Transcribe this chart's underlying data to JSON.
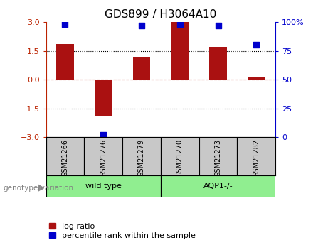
{
  "title": "GDS899 / H3064A10",
  "samples": [
    "GSM21266",
    "GSM21276",
    "GSM21279",
    "GSM21270",
    "GSM21273",
    "GSM21282"
  ],
  "log_ratios": [
    1.85,
    -1.9,
    1.2,
    3.0,
    1.7,
    0.12
  ],
  "percentile_ranks": [
    98,
    2,
    97,
    98,
    97,
    80
  ],
  "ylim_left": [
    -3,
    3
  ],
  "ylim_right": [
    0,
    100
  ],
  "yticks_left": [
    -3,
    -1.5,
    0,
    1.5,
    3
  ],
  "yticks_right": [
    0,
    25,
    50,
    75,
    100
  ],
  "bar_color": "#AA1111",
  "dot_color": "#0000CC",
  "bar_width": 0.45,
  "dot_size": 30,
  "wild_type_label": "wild type",
  "aqp1_label": "AQP1-/-",
  "genotype_label": "genotype/variation",
  "legend_log_ratio": "log ratio",
  "legend_percentile": "percentile rank within the sample",
  "panel_bg": "#C8C8C8",
  "wt_bg": "#90EE90",
  "aqp1_bg": "#90EE90",
  "left_axis_color": "#BB2200",
  "right_axis_color": "#0000CC",
  "title_fontsize": 11,
  "tick_fontsize": 8,
  "label_fontsize": 7,
  "genotype_fontsize": 8,
  "legend_fontsize": 8
}
